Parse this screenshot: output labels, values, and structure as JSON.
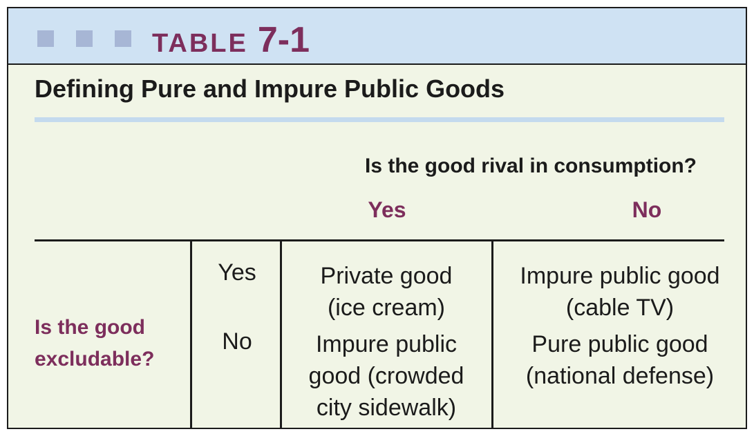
{
  "header": {
    "table_word": "TABLE",
    "table_number": "7-1"
  },
  "title": "Defining Pure and Impure Public Goods",
  "rival_question": "Is the good rival in consumption?",
  "columns": {
    "yes": "Yes",
    "no": "No"
  },
  "row_question": [
    "Is the good",
    "excludable?"
  ],
  "rows": [
    {
      "label": "Yes",
      "rival_yes": [
        "Private good",
        "(ice cream)"
      ],
      "rival_no": [
        "Impure public good",
        "(cable TV)"
      ]
    },
    {
      "label": "No",
      "rival_yes": [
        "Impure public",
        "good (crowded",
        "city sidewalk)"
      ],
      "rival_no": [
        "Pure public good",
        "(national defense)"
      ]
    }
  ],
  "colors": {
    "accent": "#7d2e5c",
    "header_bg": "#cfe2f3",
    "body_bg": "#f1f5e6",
    "square": "#a7b6d5"
  }
}
